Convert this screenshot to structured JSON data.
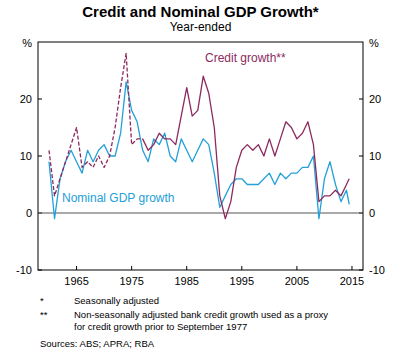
{
  "chart_data": {
    "type": "line",
    "title": "Credit and Nominal GDP Growth*",
    "subtitle": "Year-ended",
    "y_label": "%",
    "notes": [
      "*",
      "Seasonally adjusted",
      "**",
      "Non-seasonally adjusted bank credit growth used as a proxy",
      "for credit growth prior to September 1977"
    ],
    "source": "Sources: ABS; APRA; RBA",
    "x": [
      1960,
      1961,
      1962,
      1963,
      1964,
      1965,
      1966,
      1967,
      1968,
      1969,
      1970,
      1971,
      1972,
      1973,
      1974,
      1975,
      1976,
      1977,
      1978,
      1979,
      1980,
      1981,
      1982,
      1983,
      1984,
      1985,
      1986,
      1987,
      1988,
      1989,
      1990,
      1991,
      1992,
      1993,
      1994,
      1995,
      1996,
      1997,
      1998,
      1999,
      2000,
      2001,
      2002,
      2003,
      2004,
      2005,
      2006,
      2007,
      2008,
      2009,
      2010,
      2011,
      2012,
      2013,
      2014,
      2014.5
    ],
    "series": [
      {
        "name": "Credit growth**",
        "color": "#8c2a5e",
        "line_style": "dashed",
        "values": [
          11,
          3,
          6,
          9,
          12,
          15,
          8,
          9,
          8,
          10,
          8,
          10,
          15,
          22,
          28,
          12,
          13,
          13,
          null,
          null,
          null,
          null,
          null,
          null,
          null,
          null,
          null,
          null,
          null,
          null,
          null,
          null,
          null,
          null,
          null,
          null,
          null,
          null,
          null,
          null,
          null,
          null,
          null,
          null,
          null,
          null,
          null,
          null,
          null,
          null,
          null,
          null,
          null,
          null,
          null,
          null
        ]
      },
      {
        "name": "Credit growth**",
        "color": "#8c2a5e",
        "line_style": "solid",
        "values": [
          null,
          null,
          null,
          null,
          null,
          null,
          null,
          null,
          null,
          null,
          null,
          null,
          null,
          null,
          null,
          null,
          null,
          13,
          11,
          12,
          14,
          13,
          13,
          12,
          17,
          22,
          17,
          18,
          24,
          21,
          15,
          3,
          -1,
          2,
          8,
          11,
          12,
          11,
          12,
          10,
          13,
          10,
          13,
          16,
          15,
          13,
          14,
          16,
          12,
          2,
          3,
          3,
          4,
          3,
          5,
          6
        ]
      },
      {
        "name": "Nominal GDP growth",
        "color": "#23a0d8",
        "line_style": "solid",
        "values": [
          9,
          -1,
          6,
          9,
          11,
          9,
          7,
          11,
          9,
          11,
          12,
          10,
          10,
          14,
          23,
          18,
          16,
          11,
          9,
          13,
          12,
          14,
          10,
          9,
          13,
          11,
          9,
          11,
          13,
          12,
          7,
          1,
          3,
          5,
          6,
          6,
          5,
          5,
          5,
          6,
          7,
          5,
          7,
          6,
          7,
          7,
          8,
          8,
          10,
          -1,
          6,
          9,
          5,
          2,
          4,
          1.5
        ]
      }
    ],
    "xlim": [
      1958,
      2017
    ],
    "xticks": [
      1965,
      1975,
      1985,
      1995,
      2005,
      2015
    ],
    "ylim": [
      -10,
      30
    ],
    "yticks": [
      -10,
      0,
      10,
      20
    ],
    "grid": false
  }
}
